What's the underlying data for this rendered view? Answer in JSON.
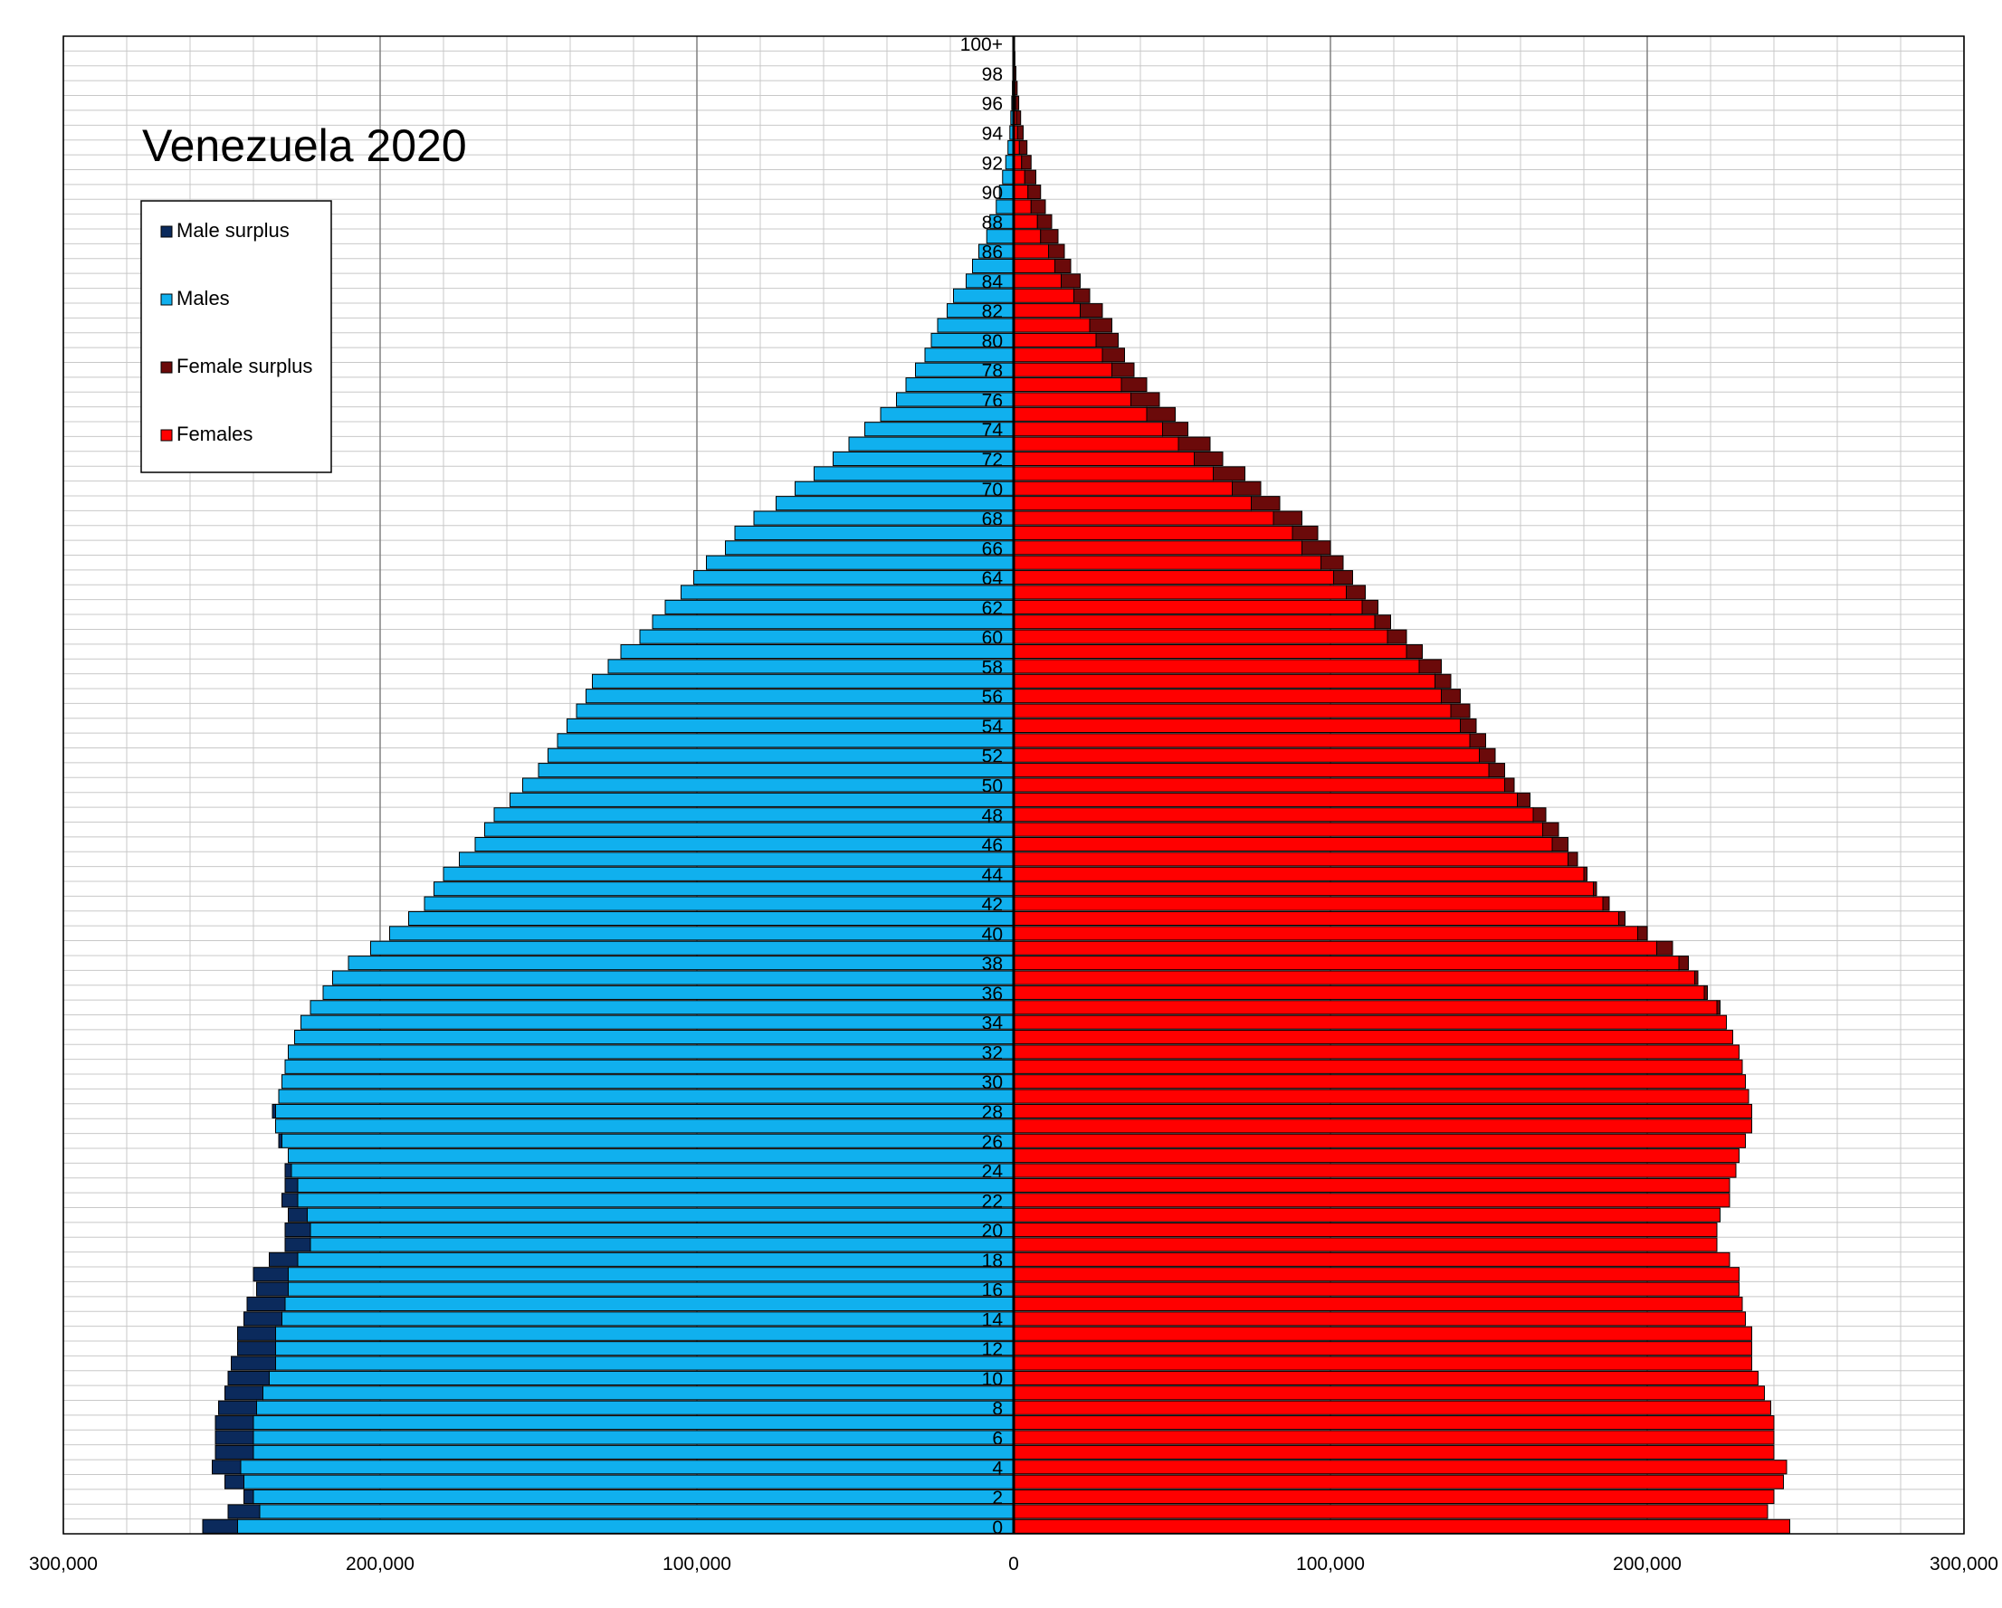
{
  "chart_data": {
    "type": "bar",
    "orientation": "horizontal",
    "title": "Venezuela 2020",
    "x_tick_labels": [
      "300,000",
      "200,000",
      "100,000",
      "0",
      "100,000",
      "200,000",
      "300,000"
    ],
    "xlim": [
      -300000,
      300000
    ],
    "grid": true,
    "legend_position": "top-left",
    "legend": [
      {
        "name": "Male surplus",
        "color": "#0b2a5c"
      },
      {
        "name": "Males",
        "color": "#10b0ee"
      },
      {
        "name": "Female surplus",
        "color": "#6b0a0a"
      },
      {
        "name": "Females",
        "color": "#ff0000"
      }
    ],
    "age_labels": [
      "0",
      "2",
      "4",
      "6",
      "8",
      "10",
      "12",
      "14",
      "16",
      "18",
      "20",
      "22",
      "24",
      "26",
      "28",
      "30",
      "32",
      "34",
      "36",
      "38",
      "40",
      "42",
      "44",
      "46",
      "48",
      "50",
      "52",
      "54",
      "56",
      "58",
      "60",
      "62",
      "64",
      "66",
      "68",
      "70",
      "72",
      "74",
      "76",
      "78",
      "80",
      "82",
      "84",
      "86",
      "88",
      "90",
      "92",
      "94",
      "96",
      "98",
      "100+"
    ],
    "ages": [
      "0",
      "1",
      "2",
      "3",
      "4",
      "5",
      "6",
      "7",
      "8",
      "9",
      "10",
      "11",
      "12",
      "13",
      "14",
      "15",
      "16",
      "17",
      "18",
      "19",
      "20",
      "21",
      "22",
      "23",
      "24",
      "25",
      "26",
      "27",
      "28",
      "29",
      "30",
      "31",
      "32",
      "33",
      "34",
      "35",
      "36",
      "37",
      "38",
      "39",
      "40",
      "41",
      "42",
      "43",
      "44",
      "45",
      "46",
      "47",
      "48",
      "49",
      "50",
      "51",
      "52",
      "53",
      "54",
      "55",
      "56",
      "57",
      "58",
      "59",
      "60",
      "61",
      "62",
      "63",
      "64",
      "65",
      "66",
      "67",
      "68",
      "69",
      "70",
      "71",
      "72",
      "73",
      "74",
      "75",
      "76",
      "77",
      "78",
      "79",
      "80",
      "81",
      "82",
      "83",
      "84",
      "85",
      "86",
      "87",
      "88",
      "89",
      "90",
      "91",
      "92",
      "93",
      "94",
      "95",
      "96",
      "97",
      "98",
      "99",
      "100+"
    ],
    "males": [
      256000,
      248000,
      243000,
      249000,
      253000,
      252000,
      252000,
      252000,
      251000,
      249000,
      248000,
      247000,
      245000,
      245000,
      243000,
      242000,
      239000,
      240000,
      235000,
      230000,
      230000,
      229000,
      231000,
      230000,
      230000,
      229000,
      232000,
      233000,
      234000,
      232000,
      231000,
      230000,
      229000,
      227000,
      225000,
      222000,
      218000,
      215000,
      210000,
      203000,
      197000,
      191000,
      186000,
      183000,
      180000,
      175000,
      170000,
      167000,
      164000,
      159000,
      155000,
      150000,
      147000,
      144000,
      141000,
      138000,
      135000,
      133000,
      128000,
      124000,
      118000,
      114000,
      110000,
      105000,
      101000,
      97000,
      91000,
      88000,
      82000,
      75000,
      69000,
      63000,
      57000,
      52000,
      47000,
      42000,
      37000,
      34000,
      31000,
      28000,
      26000,
      24000,
      21000,
      19000,
      15000,
      13000,
      11000,
      8500,
      7500,
      5500,
      4500,
      3500,
      2500,
      1800,
      1200,
      900,
      600,
      400,
      250,
      150,
      100
    ],
    "females": [
      245000,
      238000,
      240000,
      243000,
      244000,
      240000,
      240000,
      240000,
      239000,
      237000,
      235000,
      233000,
      233000,
      233000,
      231000,
      230000,
      229000,
      229000,
      226000,
      222000,
      222000,
      223000,
      226000,
      226000,
      228000,
      229000,
      231000,
      233000,
      233000,
      232000,
      231000,
      230000,
      229000,
      227000,
      225000,
      223000,
      219000,
      216000,
      213000,
      208000,
      200000,
      193000,
      188000,
      184000,
      181000,
      178000,
      175000,
      172000,
      168000,
      163000,
      158000,
      155000,
      152000,
      149000,
      146000,
      144000,
      141000,
      138000,
      135000,
      129000,
      124000,
      119000,
      115000,
      111000,
      107000,
      104000,
      100000,
      96000,
      91000,
      84000,
      78000,
      73000,
      66000,
      62000,
      55000,
      51000,
      46000,
      42000,
      38000,
      35000,
      33000,
      31000,
      28000,
      24000,
      21000,
      18000,
      16000,
      14000,
      12000,
      10000,
      8500,
      7000,
      5500,
      4200,
      3000,
      2200,
      1600,
      1100,
      700,
      400,
      300
    ]
  }
}
